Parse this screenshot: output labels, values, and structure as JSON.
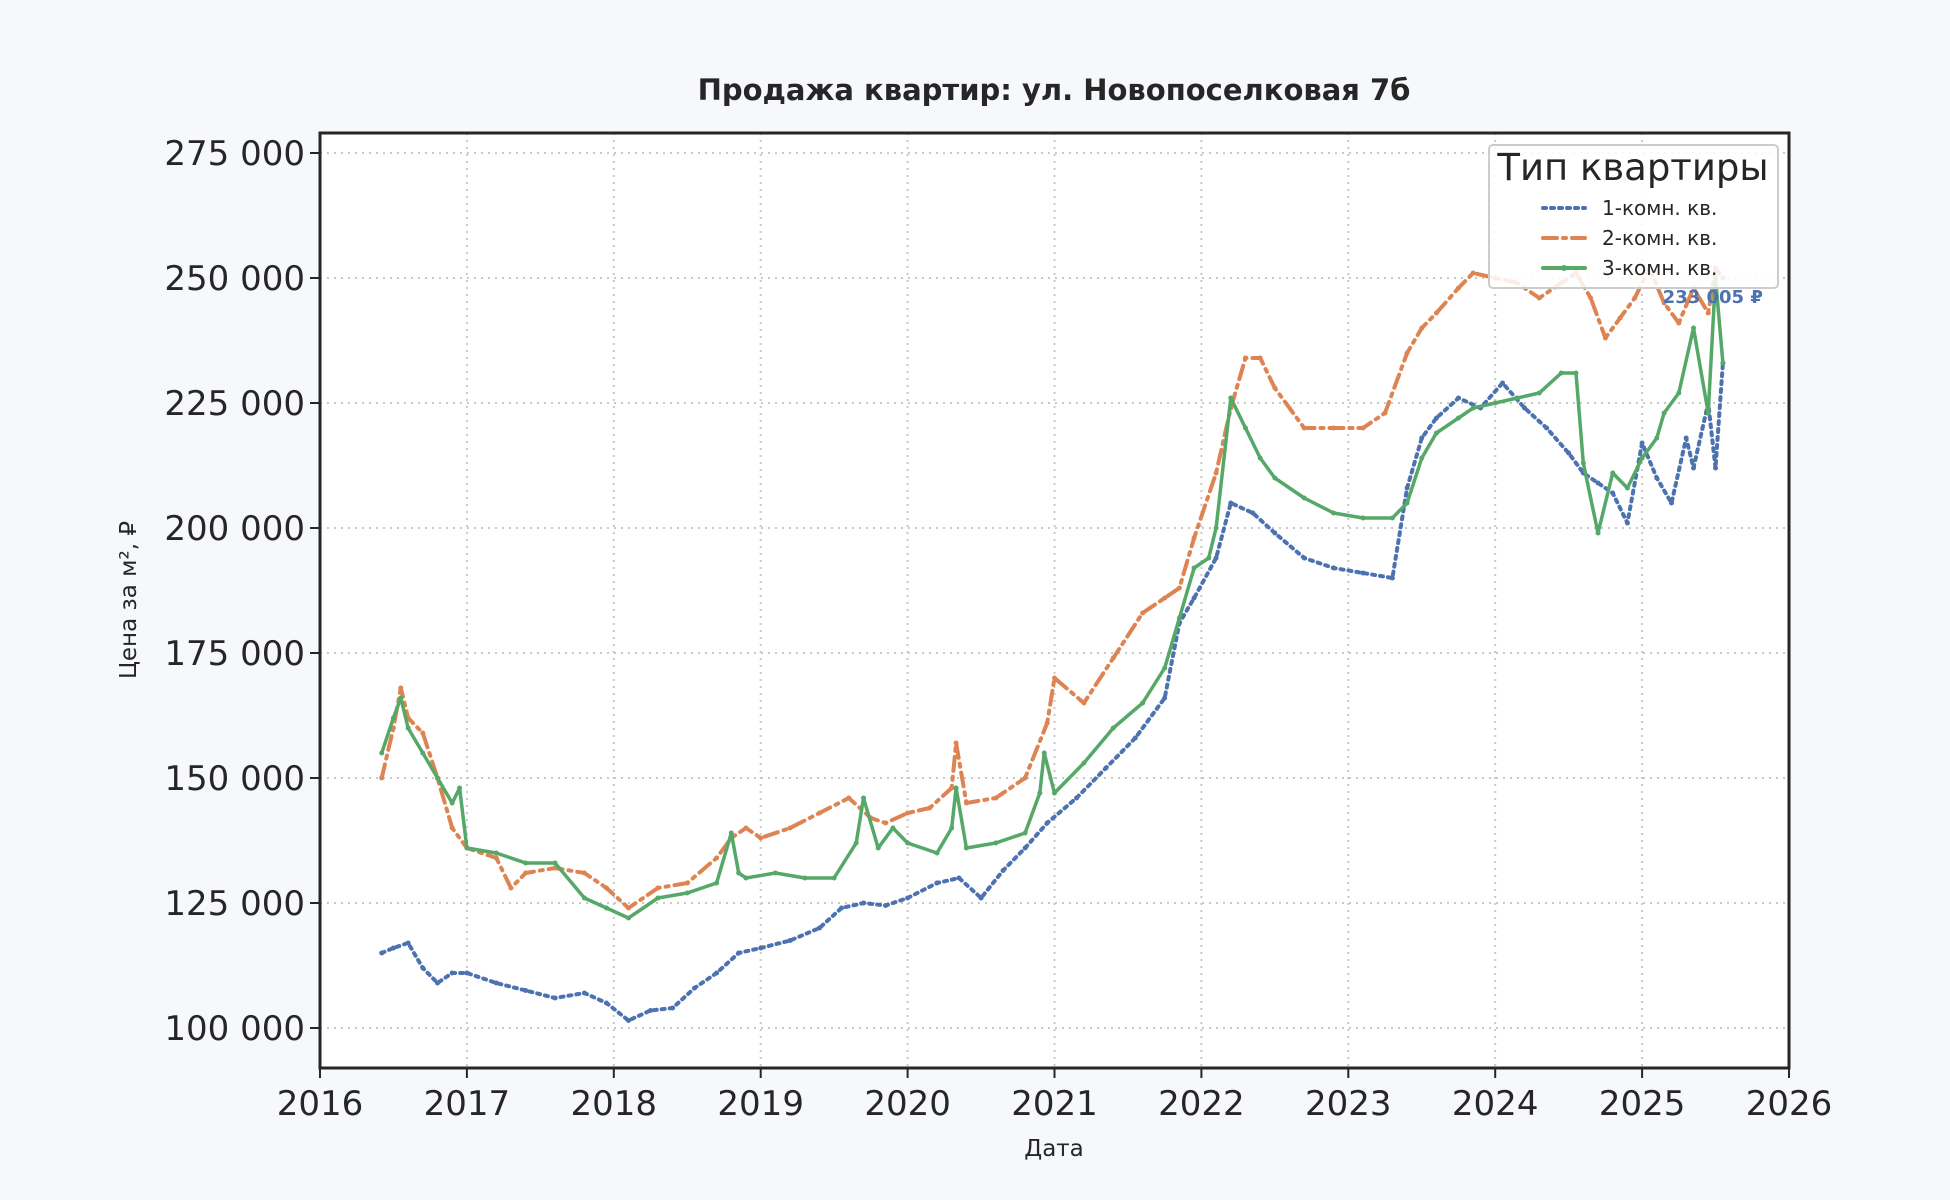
{
  "chart_data": {
    "type": "line",
    "title": "Продажа квартир: ул. Новопоселковая 7б",
    "xlabel": "Дата",
    "ylabel": "Цена за м², ₽",
    "xlim": [
      2016,
      2026
    ],
    "ylim": [
      92000,
      279000
    ],
    "x_ticks": [
      2016,
      2017,
      2018,
      2019,
      2020,
      2021,
      2022,
      2023,
      2024,
      2025,
      2026
    ],
    "x_tick_labels": [
      "2016",
      "2017",
      "2018",
      "2019",
      "2020",
      "2021",
      "2022",
      "2023",
      "2024",
      "2025",
      "2026"
    ],
    "y_ticks": [
      100000,
      125000,
      150000,
      175000,
      200000,
      225000,
      250000,
      275000
    ],
    "y_tick_labels": [
      "100 000",
      "125 000",
      "150 000",
      "175 000",
      "200 000",
      "225 000",
      "250 000",
      "275 000"
    ],
    "grid": true,
    "legend": {
      "title": "Тип квартиры",
      "position": "top-right"
    },
    "series": [
      {
        "name": "1-комн. кв.",
        "color": "#4c72b0",
        "style": "dotted",
        "x": [
          2016.42,
          2016.5,
          2016.6,
          2016.7,
          2016.8,
          2016.9,
          2017.0,
          2017.2,
          2017.4,
          2017.6,
          2017.8,
          2017.95,
          2018.1,
          2018.25,
          2018.4,
          2018.55,
          2018.7,
          2018.85,
          2019.0,
          2019.2,
          2019.4,
          2019.55,
          2019.7,
          2019.85,
          2020.0,
          2020.2,
          2020.35,
          2020.5,
          2020.65,
          2020.8,
          2020.95,
          2021.15,
          2021.35,
          2021.55,
          2021.75,
          2021.85,
          2021.95,
          2022.1,
          2022.2,
          2022.35,
          2022.5,
          2022.7,
          2022.9,
          2023.1,
          2023.3,
          2023.4,
          2023.5,
          2023.6,
          2023.75,
          2023.9,
          2024.05,
          2024.2,
          2024.35,
          2024.5,
          2024.6,
          2024.7,
          2024.8,
          2024.9,
          2025.0,
          2025.1,
          2025.2,
          2025.3,
          2025.35,
          2025.45,
          2025.5,
          2025.55
        ],
        "values": [
          115000,
          116000,
          117000,
          112000,
          109000,
          111000,
          111000,
          109000,
          107500,
          106000,
          107000,
          105000,
          101500,
          103500,
          104000,
          108000,
          111000,
          115000,
          116000,
          117500,
          120000,
          124000,
          125000,
          124500,
          126000,
          129000,
          130000,
          126000,
          131500,
          136000,
          141000,
          146000,
          152000,
          158000,
          166000,
          181000,
          186000,
          194000,
          205000,
          203000,
          199000,
          194000,
          192000,
          191000,
          190000,
          208000,
          218000,
          222000,
          226000,
          224000,
          229000,
          224000,
          220000,
          215000,
          211000,
          209000,
          207000,
          201000,
          217000,
          210000,
          205000,
          218000,
          212000,
          225000,
          212000,
          233005
        ]
      },
      {
        "name": "2-комн. кв.",
        "color": "#dd8452",
        "style": "dashdot",
        "x": [
          2016.42,
          2016.5,
          2016.55,
          2016.6,
          2016.7,
          2016.8,
          2016.9,
          2017.0,
          2017.2,
          2017.3,
          2017.4,
          2017.6,
          2017.8,
          2017.95,
          2018.1,
          2018.3,
          2018.5,
          2018.7,
          2018.8,
          2018.9,
          2019.0,
          2019.2,
          2019.4,
          2019.6,
          2019.75,
          2019.85,
          2020.0,
          2020.15,
          2020.3,
          2020.33,
          2020.4,
          2020.6,
          2020.8,
          2020.95,
          2021.0,
          2021.2,
          2021.4,
          2021.6,
          2021.75,
          2021.85,
          2021.95,
          2022.1,
          2022.2,
          2022.3,
          2022.4,
          2022.5,
          2022.7,
          2022.9,
          2023.1,
          2023.25,
          2023.4,
          2023.5,
          2023.6,
          2023.75,
          2023.85,
          2024.0,
          2024.15,
          2024.3,
          2024.45,
          2024.55,
          2024.65,
          2024.75,
          2024.85,
          2024.95,
          2025.05,
          2025.15,
          2025.25,
          2025.35,
          2025.45,
          2025.5,
          2025.55
        ],
        "values": [
          150000,
          160000,
          168000,
          162000,
          159000,
          150000,
          140000,
          136000,
          134000,
          128000,
          131000,
          132000,
          131000,
          128000,
          124000,
          128000,
          129000,
          134000,
          138000,
          140000,
          138000,
          140000,
          143000,
          146000,
          142000,
          141000,
          143000,
          144000,
          148000,
          157000,
          145000,
          146000,
          150000,
          161000,
          170000,
          165000,
          174000,
          183000,
          186000,
          188000,
          198000,
          211000,
          224000,
          234000,
          234000,
          228000,
          220000,
          220000,
          220000,
          223000,
          235000,
          240000,
          243000,
          248000,
          251000,
          250000,
          249000,
          246000,
          249000,
          251000,
          246000,
          238000,
          242000,
          246000,
          252000,
          245000,
          241000,
          248000,
          243000,
          252000,
          250000
        ]
      },
      {
        "name": "3-комн. кв.",
        "color": "#55a868",
        "style": "solid",
        "x": [
          2016.42,
          2016.5,
          2016.55,
          2016.6,
          2016.7,
          2016.8,
          2016.9,
          2016.95,
          2017.0,
          2017.2,
          2017.4,
          2017.6,
          2017.8,
          2017.95,
          2018.1,
          2018.3,
          2018.5,
          2018.7,
          2018.8,
          2018.85,
          2018.9,
          2019.1,
          2019.3,
          2019.5,
          2019.65,
          2019.7,
          2019.8,
          2019.9,
          2020.0,
          2020.2,
          2020.3,
          2020.33,
          2020.4,
          2020.6,
          2020.8,
          2020.9,
          2020.93,
          2021.0,
          2021.2,
          2021.4,
          2021.6,
          2021.75,
          2021.85,
          2021.95,
          2022.05,
          2022.1,
          2022.2,
          2022.3,
          2022.4,
          2022.5,
          2022.7,
          2022.9,
          2023.1,
          2023.3,
          2023.4,
          2023.5,
          2023.6,
          2023.75,
          2023.85,
          2024.0,
          2024.15,
          2024.3,
          2024.45,
          2024.55,
          2024.6,
          2024.7,
          2024.8,
          2024.9,
          2025.0,
          2025.1,
          2025.15,
          2025.25,
          2025.35,
          2025.45,
          2025.5,
          2025.55
        ],
        "values": [
          155000,
          162000,
          166000,
          160000,
          155000,
          150000,
          145000,
          148000,
          136000,
          135000,
          133000,
          133000,
          126000,
          124000,
          122000,
          126000,
          127000,
          129000,
          139000,
          131000,
          130000,
          131000,
          130000,
          130000,
          137000,
          146000,
          136000,
          140000,
          137000,
          135000,
          140000,
          148000,
          136000,
          137000,
          139000,
          147000,
          155000,
          147000,
          153000,
          160000,
          165000,
          172000,
          182000,
          192000,
          194000,
          200000,
          226000,
          220000,
          214000,
          210000,
          206000,
          203000,
          202000,
          202000,
          205000,
          214000,
          219000,
          222000,
          224000,
          225000,
          226000,
          227000,
          231000,
          231000,
          213000,
          199000,
          211000,
          208000,
          214000,
          218000,
          223000,
          227000,
          240000,
          223000,
          250000,
          233000
        ]
      }
    ],
    "annotations": [
      {
        "text": "233 005 ₽",
        "x": 2025.55,
        "y": 245000,
        "color": "#4c72b0"
      }
    ]
  }
}
